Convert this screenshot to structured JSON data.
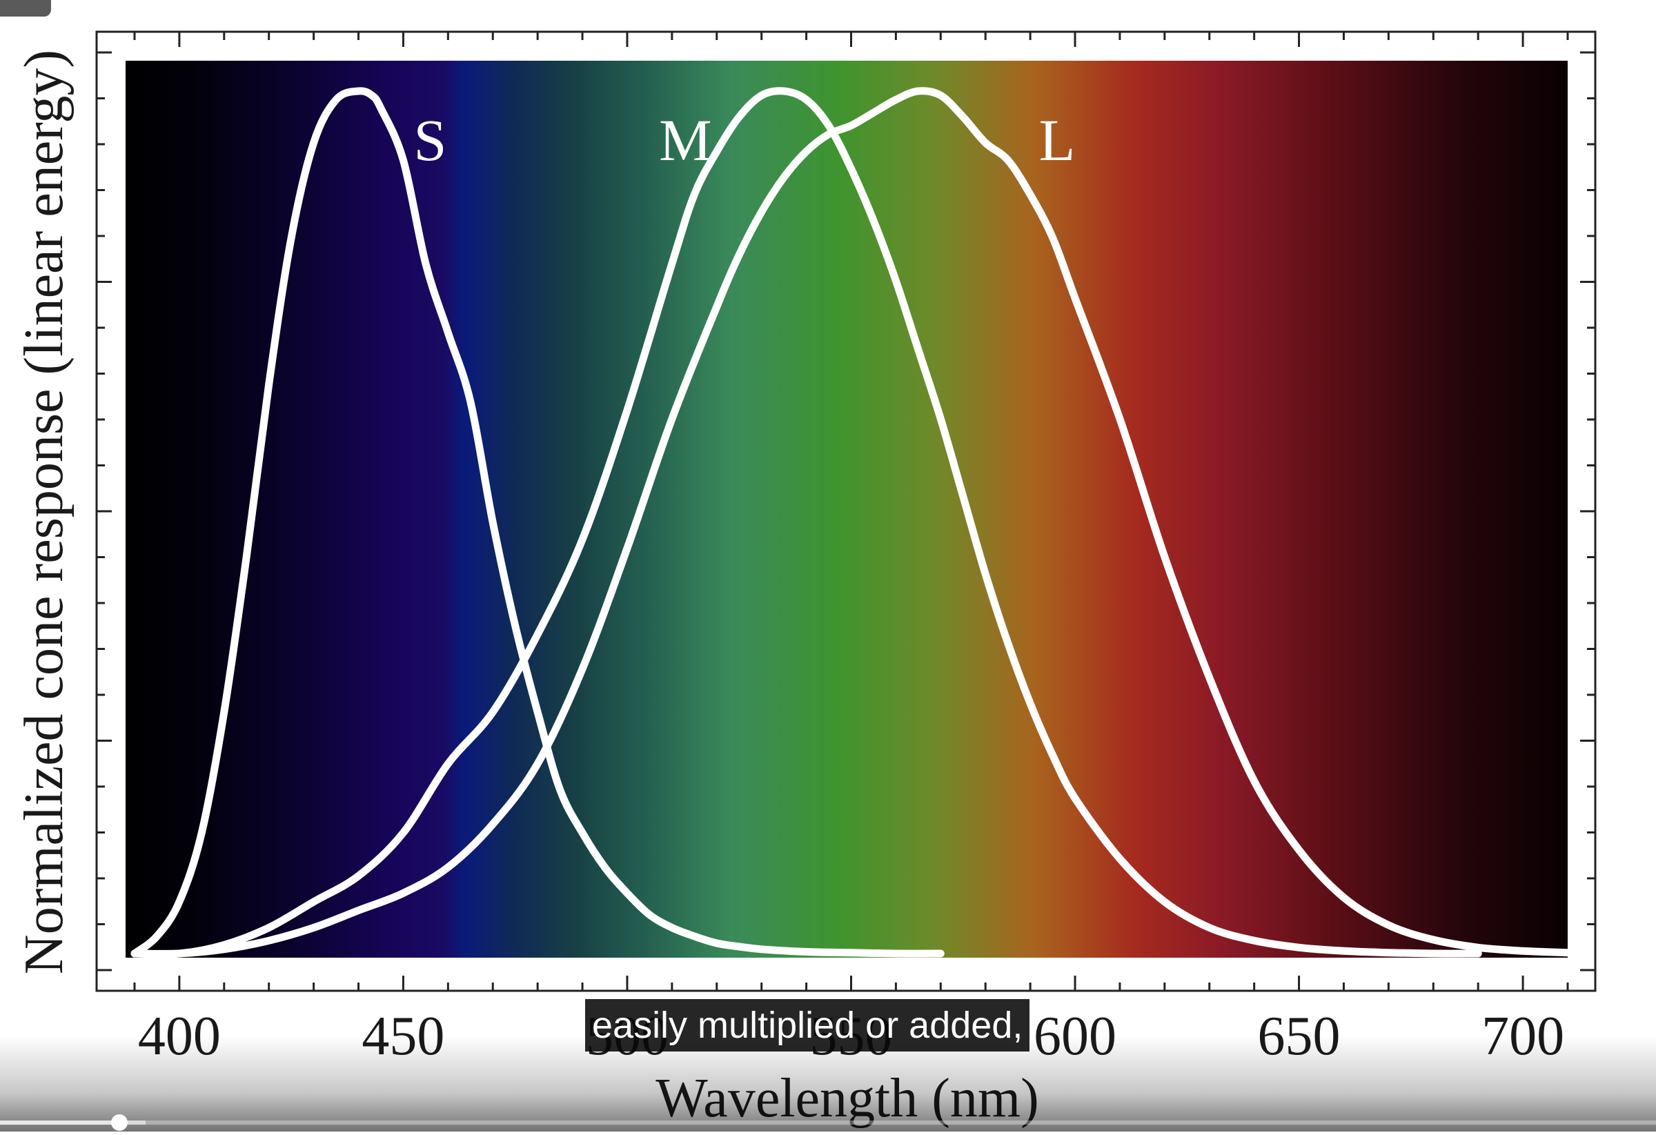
{
  "video": {
    "caption": "easily multiplied or added,",
    "progress_fraction": 0.072,
    "buffered_fraction": 0.088
  },
  "chart_data": {
    "type": "line",
    "title": "",
    "xlabel": "Wavelength (nm)",
    "ylabel": "Normalized cone response (linear energy)",
    "xlim": [
      388,
      710
    ],
    "ylim": [
      0,
      1
    ],
    "xticks": [
      400,
      450,
      500,
      550,
      600,
      650,
      700
    ],
    "background": "visible spectrum gradient",
    "series": [
      {
        "name": "S",
        "color": "#ffffff",
        "x": [
          390,
          395,
          400,
          405,
          410,
          415,
          420,
          425,
          430,
          435,
          440,
          443,
          445,
          450,
          455,
          460,
          465,
          470,
          475,
          480,
          485,
          490,
          495,
          500,
          505,
          510,
          515,
          520,
          525,
          530,
          540,
          550,
          560,
          570
        ],
        "y": [
          0.0,
          0.02,
          0.06,
          0.14,
          0.28,
          0.46,
          0.66,
          0.83,
          0.94,
          0.99,
          1.0,
          0.995,
          0.98,
          0.92,
          0.8,
          0.72,
          0.64,
          0.5,
          0.38,
          0.28,
          0.19,
          0.14,
          0.1,
          0.07,
          0.045,
          0.03,
          0.02,
          0.012,
          0.008,
          0.005,
          0.002,
          0.001,
          0.0,
          0.0
        ]
      },
      {
        "name": "M",
        "color": "#ffffff",
        "x": [
          390,
          400,
          410,
          420,
          430,
          440,
          450,
          460,
          470,
          480,
          490,
          500,
          510,
          515,
          520,
          525,
          530,
          535,
          540,
          545,
          550,
          555,
          560,
          565,
          570,
          575,
          580,
          585,
          590,
          595,
          600,
          610,
          620,
          630,
          640,
          650,
          660,
          670,
          680,
          690
        ],
        "y": [
          0.0,
          0.0,
          0.01,
          0.03,
          0.06,
          0.09,
          0.14,
          0.22,
          0.28,
          0.37,
          0.48,
          0.63,
          0.8,
          0.88,
          0.93,
          0.97,
          0.995,
          1.0,
          0.99,
          0.96,
          0.91,
          0.85,
          0.78,
          0.7,
          0.62,
          0.53,
          0.44,
          0.36,
          0.29,
          0.23,
          0.18,
          0.11,
          0.06,
          0.03,
          0.015,
          0.007,
          0.003,
          0.001,
          0.0,
          0.0
        ]
      },
      {
        "name": "L",
        "color": "#ffffff",
        "x": [
          390,
          400,
          410,
          420,
          430,
          440,
          450,
          460,
          470,
          480,
          490,
          500,
          510,
          520,
          525,
          530,
          535,
          540,
          545,
          550,
          555,
          560,
          565,
          570,
          575,
          580,
          585,
          590,
          595,
          600,
          610,
          620,
          630,
          640,
          650,
          660,
          670,
          680,
          690,
          700,
          710
        ],
        "y": [
          0.0,
          0.0,
          0.005,
          0.015,
          0.03,
          0.05,
          0.07,
          0.1,
          0.15,
          0.22,
          0.33,
          0.47,
          0.62,
          0.75,
          0.81,
          0.86,
          0.9,
          0.93,
          0.95,
          0.96,
          0.975,
          0.99,
          1.0,
          0.995,
          0.97,
          0.94,
          0.92,
          0.88,
          0.83,
          0.76,
          0.62,
          0.46,
          0.32,
          0.2,
          0.12,
          0.065,
          0.033,
          0.016,
          0.007,
          0.003,
          0.001
        ]
      }
    ],
    "annotations": [
      {
        "text": "S",
        "x": 456,
        "y": 0.92
      },
      {
        "text": "M",
        "x": 513,
        "y": 0.92
      },
      {
        "text": "L",
        "x": 596,
        "y": 0.92
      }
    ]
  }
}
